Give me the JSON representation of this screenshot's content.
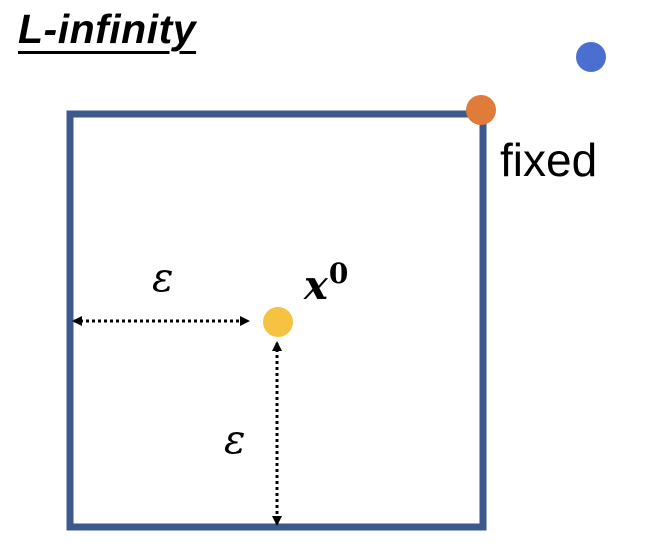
{
  "title": "L-infinity",
  "labels": {
    "fixed": "fixed",
    "epsilon_horizontal": "ε",
    "epsilon_vertical": "ε",
    "point_base": "x",
    "point_superscript": "0"
  },
  "colors": {
    "box_stroke": "#3d5a8f",
    "center_point": "#f5c242",
    "corner_point": "#e07b39",
    "outside_point": "#4a6fd1",
    "arrow": "#000000"
  }
}
